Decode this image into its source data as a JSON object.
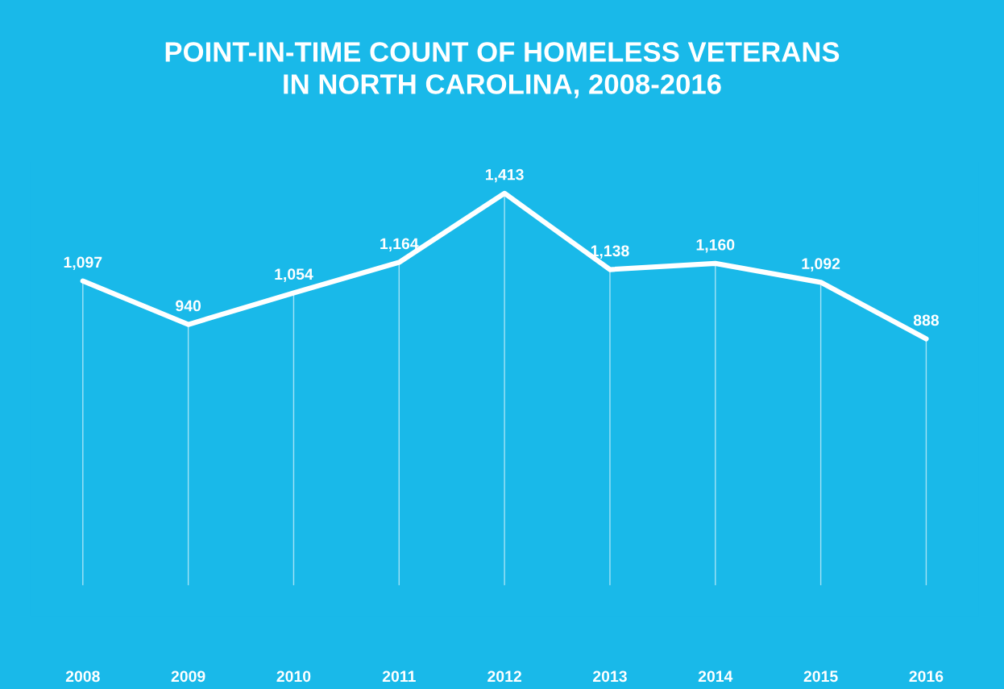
{
  "chart_data": {
    "type": "line",
    "title": "POINT-IN-TIME COUNT OF HOMELESS VETERANS\nIN NORTH CAROLINA, 2008-2016",
    "categories": [
      "2008",
      "2009",
      "2010",
      "2011",
      "2012",
      "2013",
      "2014",
      "2015",
      "2016"
    ],
    "values": [
      1097,
      940,
      1054,
      1164,
      1413,
      1138,
      1160,
      1092,
      888
    ],
    "value_labels": [
      "1,097",
      "940",
      "1,054",
      "1,164",
      "1,413",
      "1,138",
      "1,160",
      "1,092",
      "888"
    ],
    "color": "#ffffff",
    "grid": "x",
    "tick_labels": "x",
    "legend": false
  }
}
